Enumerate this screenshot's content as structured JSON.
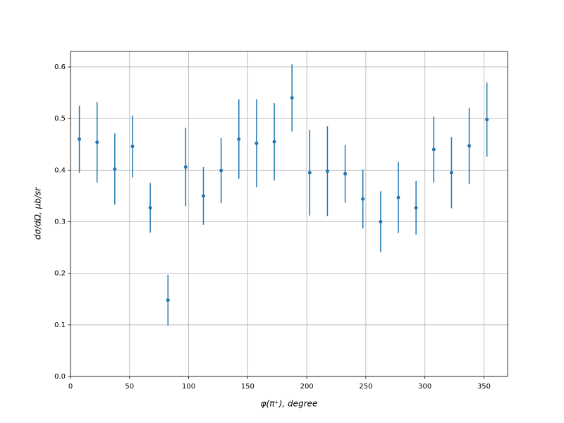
{
  "chart_data": {
    "type": "errorbar",
    "x_label": "φ(π⁺), degree",
    "y_label": "dσ/dΩ, μb/sr",
    "x": [
      7.5,
      22.5,
      37.5,
      52.5,
      67.5,
      82.5,
      97.5,
      112.5,
      127.5,
      142.5,
      157.5,
      172.5,
      187.5,
      202.5,
      217.5,
      232.5,
      247.5,
      262.5,
      277.5,
      292.5,
      307.5,
      322.5,
      337.5,
      352.5
    ],
    "values": [
      0.46,
      0.454,
      0.402,
      0.446,
      0.327,
      0.148,
      0.406,
      0.35,
      0.399,
      0.46,
      0.452,
      0.455,
      0.54,
      0.395,
      0.398,
      0.393,
      0.344,
      0.3,
      0.347,
      0.327,
      0.44,
      0.395,
      0.447,
      0.498
    ],
    "errors": [
      0.065,
      0.078,
      0.069,
      0.06,
      0.048,
      0.049,
      0.076,
      0.056,
      0.063,
      0.077,
      0.085,
      0.075,
      0.065,
      0.083,
      0.087,
      0.056,
      0.057,
      0.059,
      0.069,
      0.052,
      0.064,
      0.069,
      0.074,
      0.072
    ],
    "color": "#1f77b4",
    "xlim": [
      0,
      370
    ],
    "ylim": [
      0,
      0.63
    ],
    "xticks": [
      0,
      50,
      100,
      150,
      200,
      250,
      300,
      350
    ],
    "yticks": [
      {
        "value": 0,
        "label": "0.0"
      },
      0.1,
      0.2,
      0.3,
      0.4,
      0.5,
      0.6
    ],
    "grid": true
  }
}
